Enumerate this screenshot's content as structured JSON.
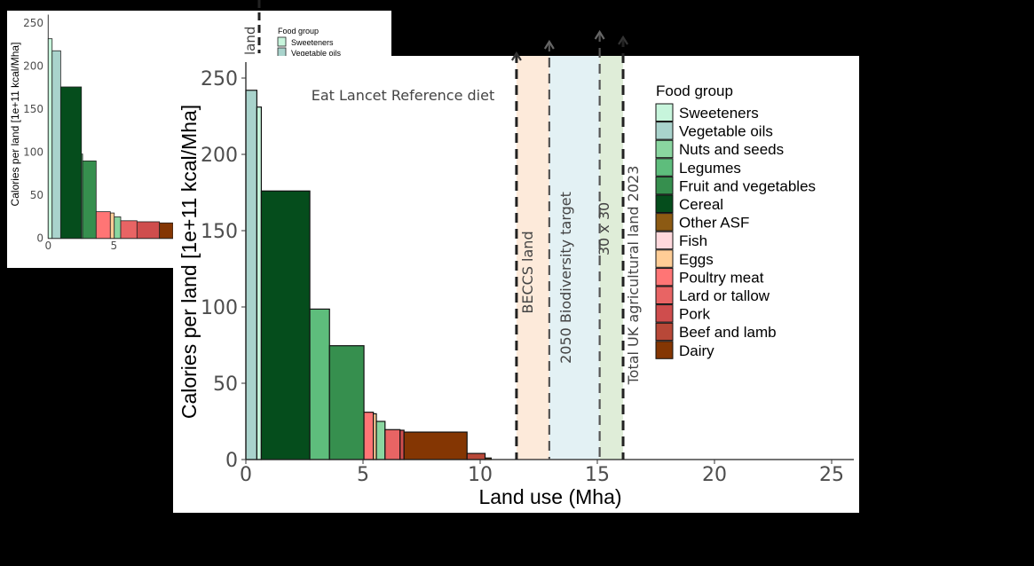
{
  "chart_data": [
    {
      "type": "bar",
      "panel": "inset",
      "ylabel": "Calories per land [1e+11 kcal/Mha]",
      "xlabel": "",
      "xlim": [
        0,
        9.4
      ],
      "ylim": [
        0,
        260
      ],
      "yticks": [
        0,
        50,
        100,
        150,
        200,
        250
      ],
      "xticks": [
        0,
        5
      ],
      "legend_title": "Food group",
      "legend": [
        "Sweeteners",
        "Vegetable oils"
      ],
      "annotation": "land",
      "bars": [
        {
          "group": "Sweeteners",
          "x0": 0,
          "x1": 0.3,
          "value": 232
        },
        {
          "group": "Vegetable oils",
          "x0": 0.3,
          "x1": 0.95,
          "value": 218
        },
        {
          "group": "Cereal",
          "x0": 0.95,
          "x1": 2.53,
          "value": 176
        },
        {
          "group": "Legumes",
          "x0": 2.53,
          "x1": 2.62,
          "value": 98
        },
        {
          "group": "Fruit and vegetables",
          "x0": 2.62,
          "x1": 3.65,
          "value": 90
        },
        {
          "group": "Poultry meat",
          "x0": 3.65,
          "x1": 4.73,
          "value": 31
        },
        {
          "group": "Eggs",
          "x0": 4.73,
          "x1": 5.03,
          "value": 29.5
        },
        {
          "group": "Nuts and seeds",
          "x0": 5.03,
          "x1": 5.52,
          "value": 25
        },
        {
          "group": "Lard or tallow",
          "x0": 5.52,
          "x1": 6.76,
          "value": 20.5
        },
        {
          "group": "Pork",
          "x0": 6.76,
          "x1": 8.47,
          "value": 19.3
        },
        {
          "group": "Dairy",
          "x0": 8.47,
          "x1": 9.5,
          "value": 18
        }
      ]
    },
    {
      "type": "bar",
      "panel": "main",
      "title": "Eat Lancet Reference diet",
      "xlabel": "Land use (Mha)",
      "ylabel": "Calories per land [1e+11 kcal/Mha]",
      "xlim": [
        0,
        26
      ],
      "ylim": [
        0,
        260
      ],
      "xticks": [
        0,
        5,
        10,
        15,
        20,
        25
      ],
      "yticks": [
        0,
        50,
        100,
        150,
        200,
        250
      ],
      "grid": false,
      "legend_title": "Food group",
      "legend_position": "right",
      "legend": [
        {
          "label": "Sweeteners",
          "color": "#c7f5dc"
        },
        {
          "label": "Vegetable oils",
          "color": "#a9d3cc"
        },
        {
          "label": "Nuts and seeds",
          "color": "#8ad6a0"
        },
        {
          "label": "Legumes",
          "color": "#5ebd7c"
        },
        {
          "label": "Fruit and vegetables",
          "color": "#368f4e"
        },
        {
          "label": "Cereal",
          "color": "#054d1c"
        },
        {
          "label": "Other ASF",
          "color": "#8c5a13"
        },
        {
          "label": "Fish",
          "color": "#ffd8dc"
        },
        {
          "label": "Eggs",
          "color": "#ffcd96"
        },
        {
          "label": "Poultry meat",
          "color": "#ff7575"
        },
        {
          "label": "Lard or tallow",
          "color": "#e86464"
        },
        {
          "label": "Pork",
          "color": "#cf4d4d"
        },
        {
          "label": "Beef and lamb",
          "color": "#b84838"
        },
        {
          "label": "Dairy",
          "color": "#843603"
        }
      ],
      "bars": [
        {
          "group": "Vegetable oils",
          "x0": 0,
          "x1": 0.47,
          "value": 242
        },
        {
          "group": "Sweeteners",
          "x0": 0.47,
          "x1": 0.66,
          "value": 231
        },
        {
          "group": "Cereal",
          "x0": 0.66,
          "x1": 2.73,
          "value": 176
        },
        {
          "group": "Legumes",
          "x0": 2.73,
          "x1": 3.57,
          "value": 98.6
        },
        {
          "group": "Fruit and vegetables",
          "x0": 3.57,
          "x1": 5.04,
          "value": 74.6
        },
        {
          "group": "Poultry meat",
          "x0": 5.04,
          "x1": 5.44,
          "value": 31
        },
        {
          "group": "Eggs",
          "x0": 5.44,
          "x1": 5.57,
          "value": 30
        },
        {
          "group": "Nuts and seeds",
          "x0": 5.57,
          "x1": 5.94,
          "value": 25
        },
        {
          "group": "Lard or tallow",
          "x0": 5.94,
          "x1": 6.58,
          "value": 19.6
        },
        {
          "group": "Pork",
          "x0": 6.58,
          "x1": 6.75,
          "value": 19.2
        },
        {
          "group": "Dairy",
          "x0": 6.75,
          "x1": 9.44,
          "value": 18
        },
        {
          "group": "Beef and lamb",
          "x0": 9.44,
          "x1": 10.21,
          "value": 4
        },
        {
          "group": "Other ASF",
          "x0": 10.21,
          "x1": 10.47,
          "value": 1
        }
      ],
      "reference_lines": [
        {
          "label": "BECCS land",
          "x": 11.55,
          "band_to": 12.95,
          "band_color": "#fde8d6"
        },
        {
          "label": "2050 Biodiversity target",
          "x": 12.95,
          "band_to": 15.1,
          "band_color": "#e0f0f3"
        },
        {
          "label": "30 x 30",
          "x": 15.1,
          "band_to": 16.1,
          "band_color": "#dcebd4"
        },
        {
          "label": "Total UK agricultural land 2023",
          "x": 16.1
        }
      ]
    }
  ]
}
